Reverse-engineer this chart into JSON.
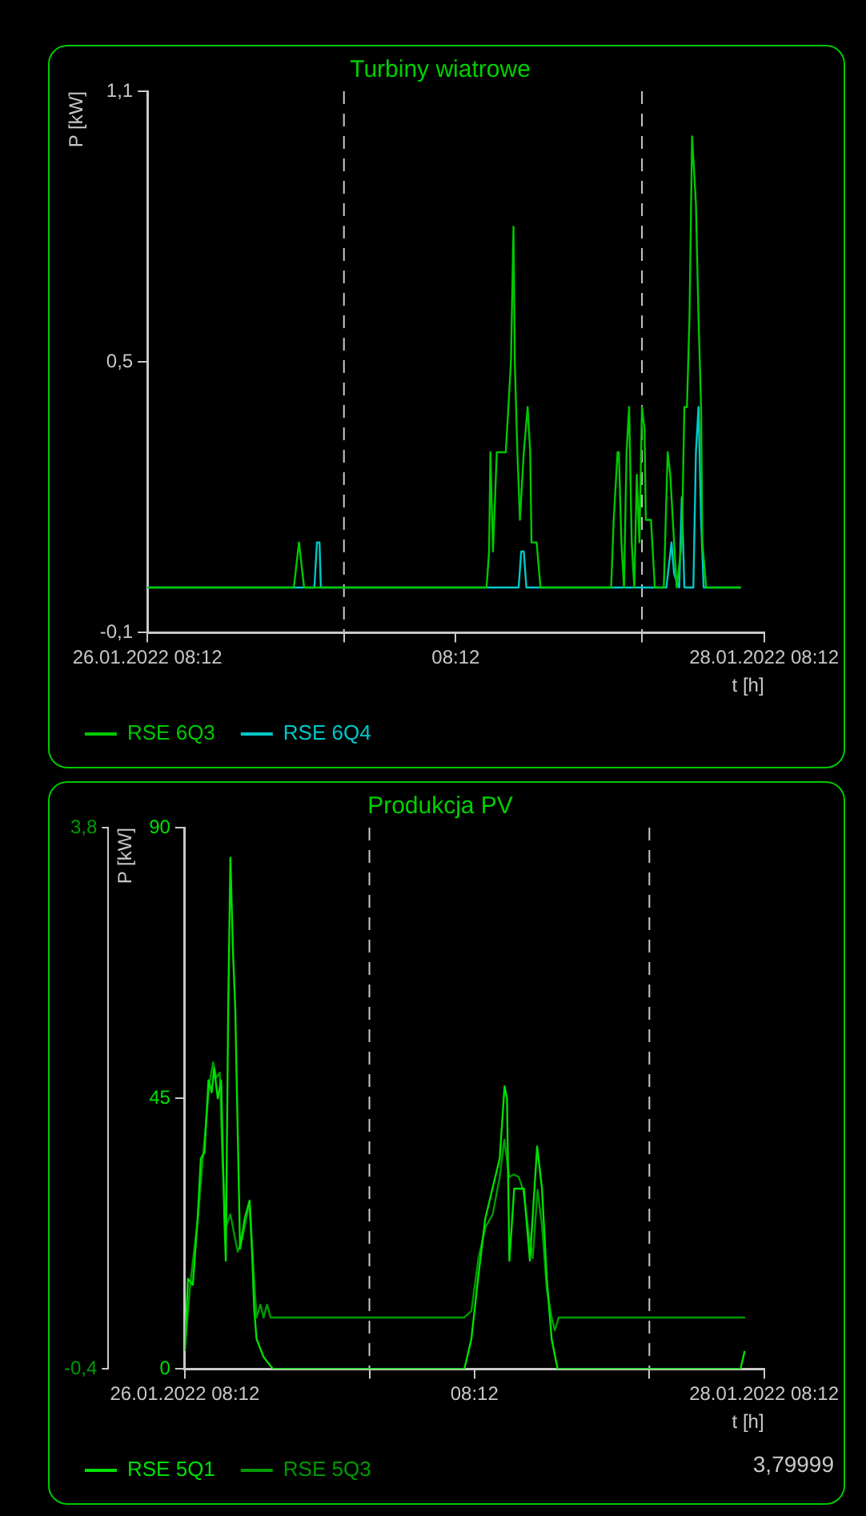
{
  "chart_data": [
    {
      "type": "line",
      "title": "Turbiny wiatrowe",
      "xlabel": "t [h]",
      "ylabel": "P [kW]",
      "xlim": [
        "2022-01-26T08:12",
        "2022-01-28T08:12"
      ],
      "xticks": [
        {
          "value": "2022-01-26T08:12",
          "label": "26.01.2022 08:12"
        },
        {
          "value": "2022-01-26T23:30",
          "label": null
        },
        {
          "value": "2022-01-27T08:12",
          "label": "08:12"
        },
        {
          "value": "2022-01-27T22:42",
          "label": null
        },
        {
          "value": "2022-01-28T08:12",
          "label": "28.01.2022 08:12"
        }
      ],
      "ylim": [
        -0.1,
        1.1
      ],
      "yticks": [
        {
          "value": -0.1,
          "label": "-0,1"
        },
        {
          "value": 0.5,
          "label": "0,5"
        },
        {
          "value": 1.1,
          "label": "1,1"
        }
      ],
      "grid": false,
      "legend": "bottom",
      "marker": "none",
      "ref_lines": [
        {
          "axis": "x",
          "value": "2022-01-26T23:30",
          "color": "#c8c8c8",
          "line_style": "dashed"
        },
        {
          "axis": "x",
          "value": "2022-01-27T22:42",
          "color": "#c8c8c8",
          "line_style": "dashed"
        }
      ],
      "series": [
        {
          "name": "RSE 6Q3",
          "color": "#00c800",
          "x": [
            "2022-01-26T08:12",
            "2022-01-26T19:36",
            "2022-01-26T20:00",
            "2022-01-26T20:24",
            "2022-01-27T10:36",
            "2022-01-27T10:48",
            "2022-01-27T10:54",
            "2022-01-27T11:06",
            "2022-01-27T11:24",
            "2022-01-27T12:06",
            "2022-01-27T12:18",
            "2022-01-27T12:30",
            "2022-01-27T12:42",
            "2022-01-27T12:48",
            "2022-01-27T13:00",
            "2022-01-27T13:12",
            "2022-01-27T13:30",
            "2022-01-27T13:48",
            "2022-01-27T14:00",
            "2022-01-27T14:06",
            "2022-01-27T14:30",
            "2022-01-27T14:48",
            "2022-01-27T20:18",
            "2022-01-27T20:30",
            "2022-01-27T20:48",
            "2022-01-27T20:54",
            "2022-01-27T21:06",
            "2022-01-27T21:18",
            "2022-01-27T21:30",
            "2022-01-27T21:42",
            "2022-01-27T21:54",
            "2022-01-27T22:06",
            "2022-01-27T22:18",
            "2022-01-27T22:30",
            "2022-01-27T22:42",
            "2022-01-27T22:54",
            "2022-01-27T23:00",
            "2022-01-27T23:24",
            "2022-01-27T23:42",
            "2022-01-28T00:24",
            "2022-01-28T00:42",
            "2022-01-28T00:54",
            "2022-01-28T01:12",
            "2022-01-28T01:24",
            "2022-01-28T01:48",
            "2022-01-28T02:00",
            "2022-01-28T02:12",
            "2022-01-28T02:24",
            "2022-01-28T02:30",
            "2022-01-28T02:36",
            "2022-01-28T02:42",
            "2022-01-28T02:54",
            "2022-01-28T03:06",
            "2022-01-28T03:18",
            "2022-01-28T03:24",
            "2022-01-28T03:42",
            "2022-01-28T06:24"
          ],
          "values": [
            0,
            0,
            0.1,
            0,
            0,
            0.08,
            0.3,
            0.08,
            0.3,
            0.3,
            0.4,
            0.5,
            0.8,
            0.5,
            0.3,
            0.15,
            0.3,
            0.4,
            0.3,
            0.1,
            0.1,
            0,
            0,
            0.15,
            0.3,
            0.3,
            0.1,
            0,
            0.3,
            0.4,
            0.1,
            0,
            0.25,
            0.1,
            0.4,
            0.35,
            0.15,
            0.15,
            0,
            0,
            0.3,
            0.25,
            0.1,
            0,
            0.1,
            0.4,
            0.4,
            0.6,
            0.8,
            1.0,
            0.95,
            0.85,
            0.6,
            0.4,
            0.1,
            0,
            0
          ]
        },
        {
          "name": "RSE 6Q4",
          "color": "#00c8c8",
          "x": [
            "2022-01-26T08:12",
            "2022-01-26T21:12",
            "2022-01-26T21:24",
            "2022-01-26T21:36",
            "2022-01-26T21:42",
            "2022-01-27T13:06",
            "2022-01-27T13:18",
            "2022-01-27T13:30",
            "2022-01-27T13:42",
            "2022-01-28T00:36",
            "2022-01-28T01:00",
            "2022-01-28T01:12",
            "2022-01-28T01:36",
            "2022-01-28T01:48",
            "2022-01-28T02:00",
            "2022-01-28T02:42",
            "2022-01-28T02:54",
            "2022-01-28T03:06",
            "2022-01-28T03:18",
            "2022-01-28T03:30",
            "2022-01-28T06:24"
          ],
          "values": [
            0,
            0,
            0.1,
            0.1,
            0,
            0,
            0.08,
            0.08,
            0,
            0,
            0.1,
            0.03,
            0,
            0.2,
            0,
            0,
            0.3,
            0.4,
            0.15,
            0,
            0
          ]
        }
      ]
    },
    {
      "type": "line",
      "title": "Produkcja PV",
      "xlabel": "t [h]",
      "ylabel": "P [kW]",
      "xlim": [
        "2022-01-26T08:12",
        "2022-01-28T08:12"
      ],
      "xticks": [
        {
          "value": "2022-01-26T08:12",
          "label": "26.01.2022 08:12"
        },
        {
          "value": "2022-01-26T23:30",
          "label": null
        },
        {
          "value": "2022-01-27T08:12",
          "label": "08:12"
        },
        {
          "value": "2022-01-27T22:42",
          "label": null
        },
        {
          "value": "2022-01-28T08:12",
          "label": "28.01.2022 08:12"
        }
      ],
      "ylim": [
        0,
        90
      ],
      "yticks": [
        0,
        45,
        90
      ],
      "y2lim": [
        -0.4,
        3.8
      ],
      "y2ticks": [
        {
          "value": -0.4,
          "label": "-0,4"
        },
        {
          "value": 3.8,
          "label": "3,8"
        }
      ],
      "grid": false,
      "legend": "bottom",
      "marker": "none",
      "annotations": [
        "3,79999"
      ],
      "ref_lines": [
        {
          "axis": "x",
          "value": "2022-01-26T23:30",
          "color": "#c8c8c8",
          "line_style": "dashed"
        },
        {
          "axis": "x",
          "value": "2022-01-27T22:42",
          "color": "#c8c8c8",
          "line_style": "dashed"
        }
      ],
      "series": [
        {
          "name": "RSE 5Q1",
          "color": "#00e000",
          "x": [
            "2022-01-26T08:12",
            "2022-01-26T08:28",
            "2022-01-26T08:52",
            "2022-01-26T09:16",
            "2022-01-26T09:32",
            "2022-01-26T09:50",
            "2022-01-26T10:10",
            "2022-01-26T10:26",
            "2022-01-26T10:38",
            "2022-01-26T10:56",
            "2022-01-26T11:13",
            "2022-01-26T11:29",
            "2022-01-26T11:36",
            "2022-01-26T11:48",
            "2022-01-26T11:59",
            "2022-01-26T12:11",
            "2022-01-26T12:23",
            "2022-01-26T12:35",
            "2022-01-26T12:47",
            "2022-01-26T13:10",
            "2022-01-26T13:34",
            "2022-01-26T13:46",
            "2022-01-26T13:57",
            "2022-01-26T14:09",
            "2022-01-26T14:44",
            "2022-01-26T15:31",
            "2022-01-27T07:22",
            "2022-01-27T07:57",
            "2022-01-27T08:30",
            "2022-01-27T09:06",
            "2022-01-27T09:42",
            "2022-01-27T10:18",
            "2022-01-27T10:42",
            "2022-01-27T10:54",
            "2022-01-27T11:06",
            "2022-01-27T11:30",
            "2022-01-27T12:18",
            "2022-01-27T12:48",
            "2022-01-27T13:24",
            "2022-01-27T13:48",
            "2022-01-27T14:12",
            "2022-01-27T14:36",
            "2022-01-27T15:06",
            "2022-01-28T06:15",
            "2022-01-28T06:36"
          ],
          "values": [
            3,
            15,
            14,
            25,
            35,
            36,
            48,
            46,
            50,
            45,
            48,
            25,
            18,
            60,
            85,
            70,
            60,
            40,
            20,
            25,
            28,
            20,
            10,
            5,
            2,
            0,
            0,
            5,
            15,
            25,
            30,
            35,
            47,
            45,
            18,
            30,
            30,
            18,
            37,
            30,
            15,
            5,
            0,
            0,
            3
          ]
        },
        {
          "name": "RSE 5Q3",
          "color": "#009a00",
          "axis": "y2",
          "x": [
            "2022-01-26T08:12",
            "2022-01-26T08:40",
            "2022-01-26T09:16",
            "2022-01-26T09:39",
            "2022-01-26T10:14",
            "2022-01-26T10:33",
            "2022-01-26T10:49",
            "2022-01-26T11:06",
            "2022-01-26T11:20",
            "2022-01-26T11:36",
            "2022-01-26T11:59",
            "2022-01-26T12:35",
            "2022-01-26T12:58",
            "2022-01-26T13:34",
            "2022-01-26T13:50",
            "2022-01-26T14:09",
            "2022-01-26T14:28",
            "2022-01-26T14:44",
            "2022-01-26T15:01",
            "2022-01-26T15:19",
            "2022-01-27T07:22",
            "2022-01-27T07:57",
            "2022-01-27T08:32",
            "2022-01-27T09:07",
            "2022-01-27T09:43",
            "2022-01-27T10:18",
            "2022-01-27T10:41",
            "2022-01-27T11:05",
            "2022-01-27T11:28",
            "2022-01-27T11:52",
            "2022-01-27T12:15",
            "2022-01-27T12:38",
            "2022-01-27T13:02",
            "2022-01-27T13:26",
            "2022-01-27T13:49",
            "2022-01-27T14:12",
            "2022-01-27T14:36",
            "2022-01-27T14:52",
            "2022-01-27T15:11",
            "2022-01-27T15:30",
            "2022-01-28T06:38"
          ],
          "values": [
            -0.26,
            0.27,
            0.75,
            1.18,
            1.81,
            1.98,
            1.86,
            1.9,
            1.18,
            0.7,
            0.8,
            0.51,
            0.61,
            0.9,
            0.46,
            0,
            0.1,
            0,
            0.1,
            0,
            0,
            0.05,
            0.46,
            0.7,
            0.8,
            1.09,
            1.38,
            1.09,
            1.11,
            1.09,
            0.99,
            0.7,
            0.46,
            0.99,
            0.7,
            0.22,
            0,
            -0.1,
            0,
            0,
            0
          ]
        }
      ]
    }
  ]
}
